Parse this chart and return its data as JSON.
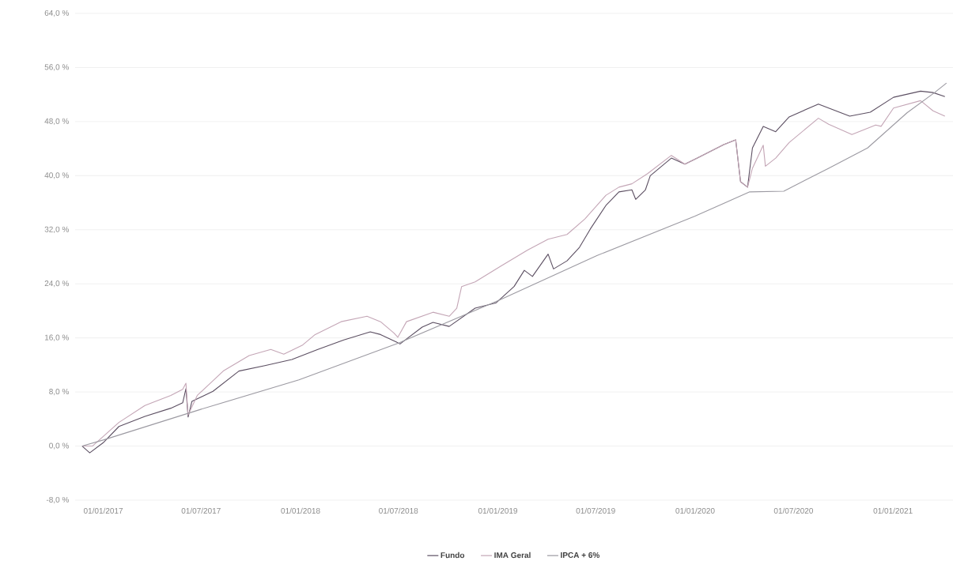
{
  "chart_data": {
    "type": "line",
    "ylim": [
      -8,
      64
    ],
    "yticks": [
      {
        "value": -8,
        "label": "-8,0 %"
      },
      {
        "value": 0,
        "label": "0,0 %"
      },
      {
        "value": 8,
        "label": "8,0 %"
      },
      {
        "value": 16,
        "label": "16,0 %"
      },
      {
        "value": 24,
        "label": "24,0 %"
      },
      {
        "value": 32,
        "label": "32,0 %"
      },
      {
        "value": 40,
        "label": "40,0 %"
      },
      {
        "value": 48,
        "label": "48,0 %"
      },
      {
        "value": 56,
        "label": "56,0 %"
      },
      {
        "value": 64,
        "label": "64,0 %"
      }
    ],
    "xlim": [
      "2016-11-10",
      "2021-04-22"
    ],
    "xticks": [
      {
        "value": "2017-01-01",
        "label": "01/01/2017"
      },
      {
        "value": "2017-07-01",
        "label": "01/07/2017"
      },
      {
        "value": "2018-01-01",
        "label": "01/01/2018"
      },
      {
        "value": "2018-07-01",
        "label": "01/07/2018"
      },
      {
        "value": "2019-01-01",
        "label": "01/01/2019"
      },
      {
        "value": "2019-07-01",
        "label": "01/07/2019"
      },
      {
        "value": "2020-01-01",
        "label": "01/01/2020"
      },
      {
        "value": "2020-07-01",
        "label": "01/07/2020"
      },
      {
        "value": "2021-01-01",
        "label": "01/01/2021"
      }
    ],
    "grid": "y",
    "legend": "bottom",
    "marker": "none",
    "line_style": "solid",
    "series": [
      {
        "name": "Fundo",
        "color": "#5c4f62",
        "x": [
          "2016-11-23",
          "2016-12-07",
          "2017-01-01",
          "2017-01-30",
          "2017-03-19",
          "2017-05-06",
          "2017-05-28",
          "2017-06-03",
          "2017-06-07",
          "2017-06-14",
          "2017-07-23",
          "2017-09-09",
          "2017-10-27",
          "2017-12-16",
          "2018-02-02",
          "2018-03-22",
          "2018-05-10",
          "2018-05-29",
          "2018-06-27",
          "2018-07-04",
          "2018-08-14",
          "2018-09-03",
          "2018-10-03",
          "2018-11-20",
          "2018-12-29",
          "2019-01-31",
          "2019-02-19",
          "2019-03-06",
          "2019-04-04",
          "2019-04-14",
          "2019-05-09",
          "2019-06-01",
          "2019-06-21",
          "2019-07-20",
          "2019-08-13",
          "2019-09-06",
          "2019-09-13",
          "2019-10-01",
          "2019-10-10",
          "2019-11-18",
          "2019-12-13",
          "2020-01-05",
          "2020-02-23",
          "2020-03-16",
          "2020-03-25",
          "2020-04-07",
          "2020-04-16",
          "2020-05-06",
          "2020-05-29",
          "2020-06-23",
          "2020-08-16",
          "2020-10-13",
          "2020-11-20",
          "2021-01-02",
          "2021-02-21",
          "2021-03-16",
          "2021-04-07"
        ],
        "values": [
          0,
          -1.0,
          0.5,
          2.9,
          4.4,
          5.6,
          6.4,
          8.5,
          4.3,
          6.6,
          8.1,
          11.1,
          11.9,
          12.8,
          14.3,
          15.7,
          16.9,
          16.5,
          15.4,
          15.1,
          17.6,
          18.3,
          17.7,
          20.4,
          21.2,
          23.6,
          26.0,
          25.1,
          28.4,
          26.2,
          27.4,
          29.4,
          32.1,
          35.6,
          37.6,
          37.9,
          36.5,
          37.9,
          40.0,
          42.6,
          41.7,
          42.6,
          44.6,
          45.3,
          39.1,
          38.3,
          44.1,
          47.3,
          46.5,
          48.7,
          50.6,
          48.8,
          49.4,
          51.6,
          52.5,
          52.3,
          51.7
        ]
      },
      {
        "name": "IMA Geral",
        "color": "#c4a6b6",
        "x": [
          "2016-11-23",
          "2016-12-12",
          "2017-01-30",
          "2017-03-19",
          "2017-05-06",
          "2017-05-28",
          "2017-06-03",
          "2017-06-07",
          "2017-06-24",
          "2017-08-11",
          "2017-09-28",
          "2017-11-07",
          "2017-12-01",
          "2018-01-04",
          "2018-01-28",
          "2018-03-17",
          "2018-05-04",
          "2018-05-29",
          "2018-06-23",
          "2018-06-30",
          "2018-07-16",
          "2018-09-03",
          "2018-10-03",
          "2018-10-17",
          "2018-10-26",
          "2018-11-20",
          "2019-01-06",
          "2019-02-25",
          "2019-04-04",
          "2019-05-09",
          "2019-06-11",
          "2019-07-20",
          "2019-08-13",
          "2019-09-06",
          "2019-10-05",
          "2019-11-18",
          "2019-12-13",
          "2020-01-05",
          "2020-02-23",
          "2020-03-16",
          "2020-03-25",
          "2020-04-07",
          "2020-04-16",
          "2020-05-06",
          "2020-05-10",
          "2020-05-29",
          "2020-06-23",
          "2020-08-16",
          "2020-09-04",
          "2020-10-17",
          "2020-11-30",
          "2020-12-10",
          "2021-01-02",
          "2021-02-21",
          "2021-03-16",
          "2021-04-07"
        ],
        "values": [
          0,
          0,
          3.5,
          6.0,
          7.5,
          8.4,
          9.3,
          4.6,
          7.5,
          11.1,
          13.4,
          14.3,
          13.6,
          14.9,
          16.5,
          18.4,
          19.2,
          18.4,
          16.7,
          16.1,
          18.4,
          19.8,
          19.2,
          20.4,
          23.6,
          24.3,
          26.6,
          29.0,
          30.6,
          31.3,
          33.6,
          37.1,
          38.3,
          38.8,
          40.3,
          43.0,
          41.7,
          42.6,
          44.6,
          45.3,
          39.1,
          38.3,
          41.1,
          44.5,
          41.4,
          42.6,
          44.9,
          48.5,
          47.6,
          46.1,
          47.5,
          47.3,
          50.0,
          51.1,
          49.6,
          48.8
        ]
      },
      {
        "name": "IPCA + 6%",
        "color": "#9c9aa2",
        "x": [
          "2016-11-23",
          "2017-01-01",
          "2017-06-29",
          "2017-12-29",
          "2018-07-03",
          "2019-01-04",
          "2019-07-04",
          "2019-12-31",
          "2020-04-11",
          "2020-06-13",
          "2020-09-04",
          "2020-11-15",
          "2021-01-27",
          "2021-03-19",
          "2021-04-10"
        ],
        "values": [
          0,
          0.9,
          5.4,
          9.8,
          15.3,
          21.6,
          28.2,
          34.0,
          37.6,
          37.7,
          41.1,
          44.1,
          49.3,
          52.3,
          53.7
        ]
      }
    ]
  }
}
